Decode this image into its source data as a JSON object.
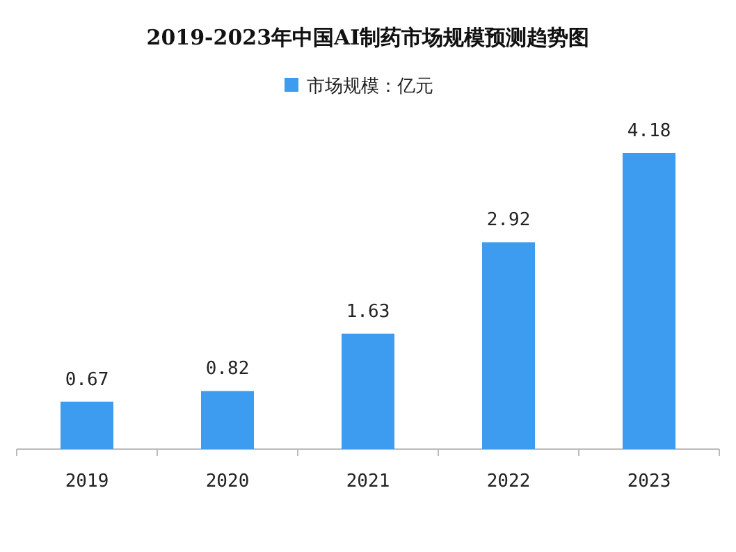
{
  "chart_data": {
    "type": "bar",
    "title": "2019-2023年中国AI制药市场规模预测趋势图",
    "categories": [
      "2019",
      "2020",
      "2021",
      "2022",
      "2023"
    ],
    "series": [
      {
        "name": "市场规模：亿元",
        "color": "#3d9bf0",
        "values": [
          0.67,
          0.82,
          1.63,
          2.92,
          4.18
        ]
      }
    ],
    "data_labels": true,
    "legend": "top",
    "grid": false
  }
}
